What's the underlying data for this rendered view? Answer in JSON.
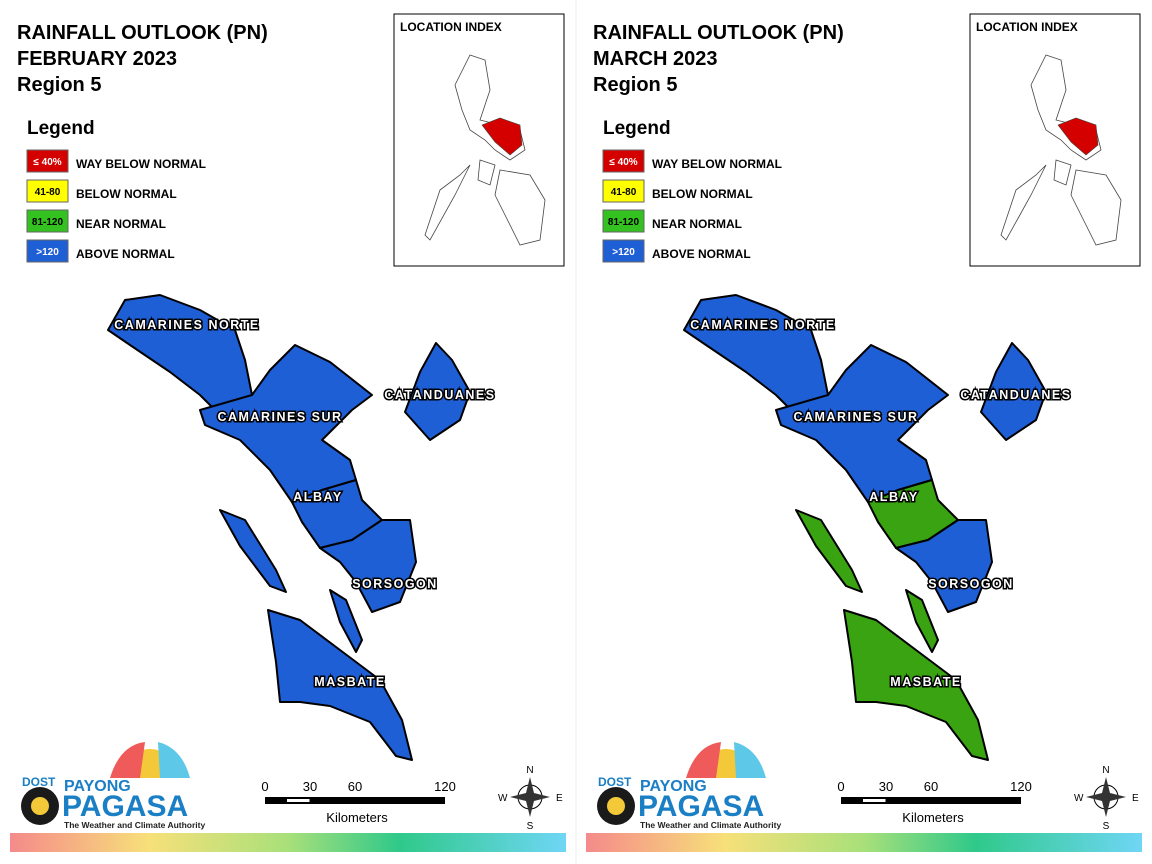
{
  "panels": [
    {
      "title": "RAINFALL OUTLOOK (PN)",
      "period": "FEBRUARY 2023",
      "region": "Region 5",
      "legend": {
        "title": "Legend",
        "items": [
          {
            "swatch": "≤ 40%",
            "label": "WAY BELOW NORMAL",
            "color": "#d40000"
          },
          {
            "swatch": "41-80",
            "label": "BELOW NORMAL",
            "color": "#ffff00"
          },
          {
            "swatch": "81-120",
            "label": "NEAR NORMAL",
            "color": "#33c21f"
          },
          {
            "swatch": ">120",
            "label": "ABOVE NORMAL",
            "color": "#1f5fd6"
          }
        ]
      },
      "location_index": "LOCATION INDEX",
      "provinces": [
        {
          "name": "CAMARINES NORTE",
          "color": "#1f5fd6"
        },
        {
          "name": "CAMARINES SUR",
          "color": "#1f5fd6"
        },
        {
          "name": "CATANDUANES",
          "color": "#1f5fd6"
        },
        {
          "name": "ALBAY",
          "color": "#1f5fd6"
        },
        {
          "name": "SORSOGON",
          "color": "#1f5fd6"
        },
        {
          "name": "MASBATE",
          "color": "#1f5fd6"
        }
      ],
      "scale": {
        "ticks": [
          0,
          30,
          60,
          120
        ],
        "unit": "Kilometers"
      },
      "compass": {
        "n": "N",
        "e": "E",
        "s": "S",
        "w": "W"
      },
      "logo": {
        "dost": "DOST",
        "payong": "PAYONG",
        "pagasa": "PAGASA",
        "tagline": "The Weather and Climate Authority"
      }
    },
    {
      "title": "RAINFALL OUTLOOK (PN)",
      "period": "MARCH 2023",
      "region": "Region 5",
      "legend": {
        "title": "Legend",
        "items": [
          {
            "swatch": "≤ 40%",
            "label": "WAY BELOW NORMAL",
            "color": "#d40000"
          },
          {
            "swatch": "41-80",
            "label": "BELOW NORMAL",
            "color": "#ffff00"
          },
          {
            "swatch": "81-120",
            "label": "NEAR NORMAL",
            "color": "#33c21f"
          },
          {
            "swatch": ">120",
            "label": "ABOVE NORMAL",
            "color": "#1f5fd6"
          }
        ]
      },
      "location_index": "LOCATION INDEX",
      "provinces": [
        {
          "name": "CAMARINES NORTE",
          "color": "#1f5fd6"
        },
        {
          "name": "CAMARINES SUR",
          "color": "#1f5fd6"
        },
        {
          "name": "CATANDUANES",
          "color": "#1f5fd6"
        },
        {
          "name": "ALBAY",
          "color": "#3aa312"
        },
        {
          "name": "SORSOGON",
          "color": "#1f5fd6"
        },
        {
          "name": "MASBATE",
          "color": "#3aa312"
        }
      ],
      "scale": {
        "ticks": [
          0,
          30,
          60,
          120
        ],
        "unit": "Kilometers"
      },
      "compass": {
        "n": "N",
        "e": "E",
        "s": "S",
        "w": "W"
      },
      "logo": {
        "dost": "DOST",
        "payong": "PAYONG",
        "pagasa": "PAGASA",
        "tagline": "The Weather and Climate Authority"
      }
    }
  ]
}
